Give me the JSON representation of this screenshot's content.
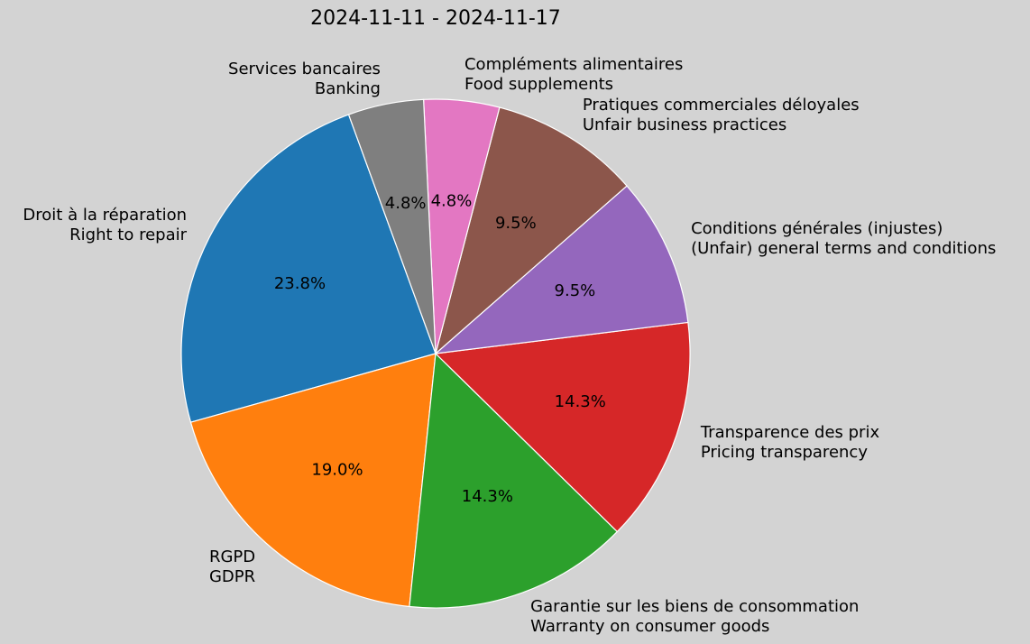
{
  "chart_data": {
    "type": "pie",
    "title": "2024-11-11 - 2024-11-17",
    "categories": [
      "Droit à la réparation\nRight to repair",
      "RGPD\nGDPR",
      "Garantie sur les biens de consommation\nWarranty on consumer goods",
      "Transparence des prix\nPricing transparency",
      "Conditions générales (injustes)\n(Unfair) general terms and conditions",
      "Pratiques commerciales déloyales\nUnfair business practices",
      "Compléments alimentaires\nFood supplements",
      "Services bancaires\nBanking"
    ],
    "values": [
      23.8,
      19.0,
      14.3,
      14.3,
      9.5,
      9.5,
      4.8,
      4.8
    ],
    "value_labels": [
      "23.8%",
      "19.0%",
      "14.3%",
      "14.3%",
      "9.5%",
      "9.5%",
      "4.8%",
      "4.8%"
    ],
    "colors": [
      "#1f77b4",
      "#ff7f0e",
      "#2ca02c",
      "#d62728",
      "#9467bd",
      "#8c564b",
      "#e377c2",
      "#7f7f7f"
    ]
  }
}
